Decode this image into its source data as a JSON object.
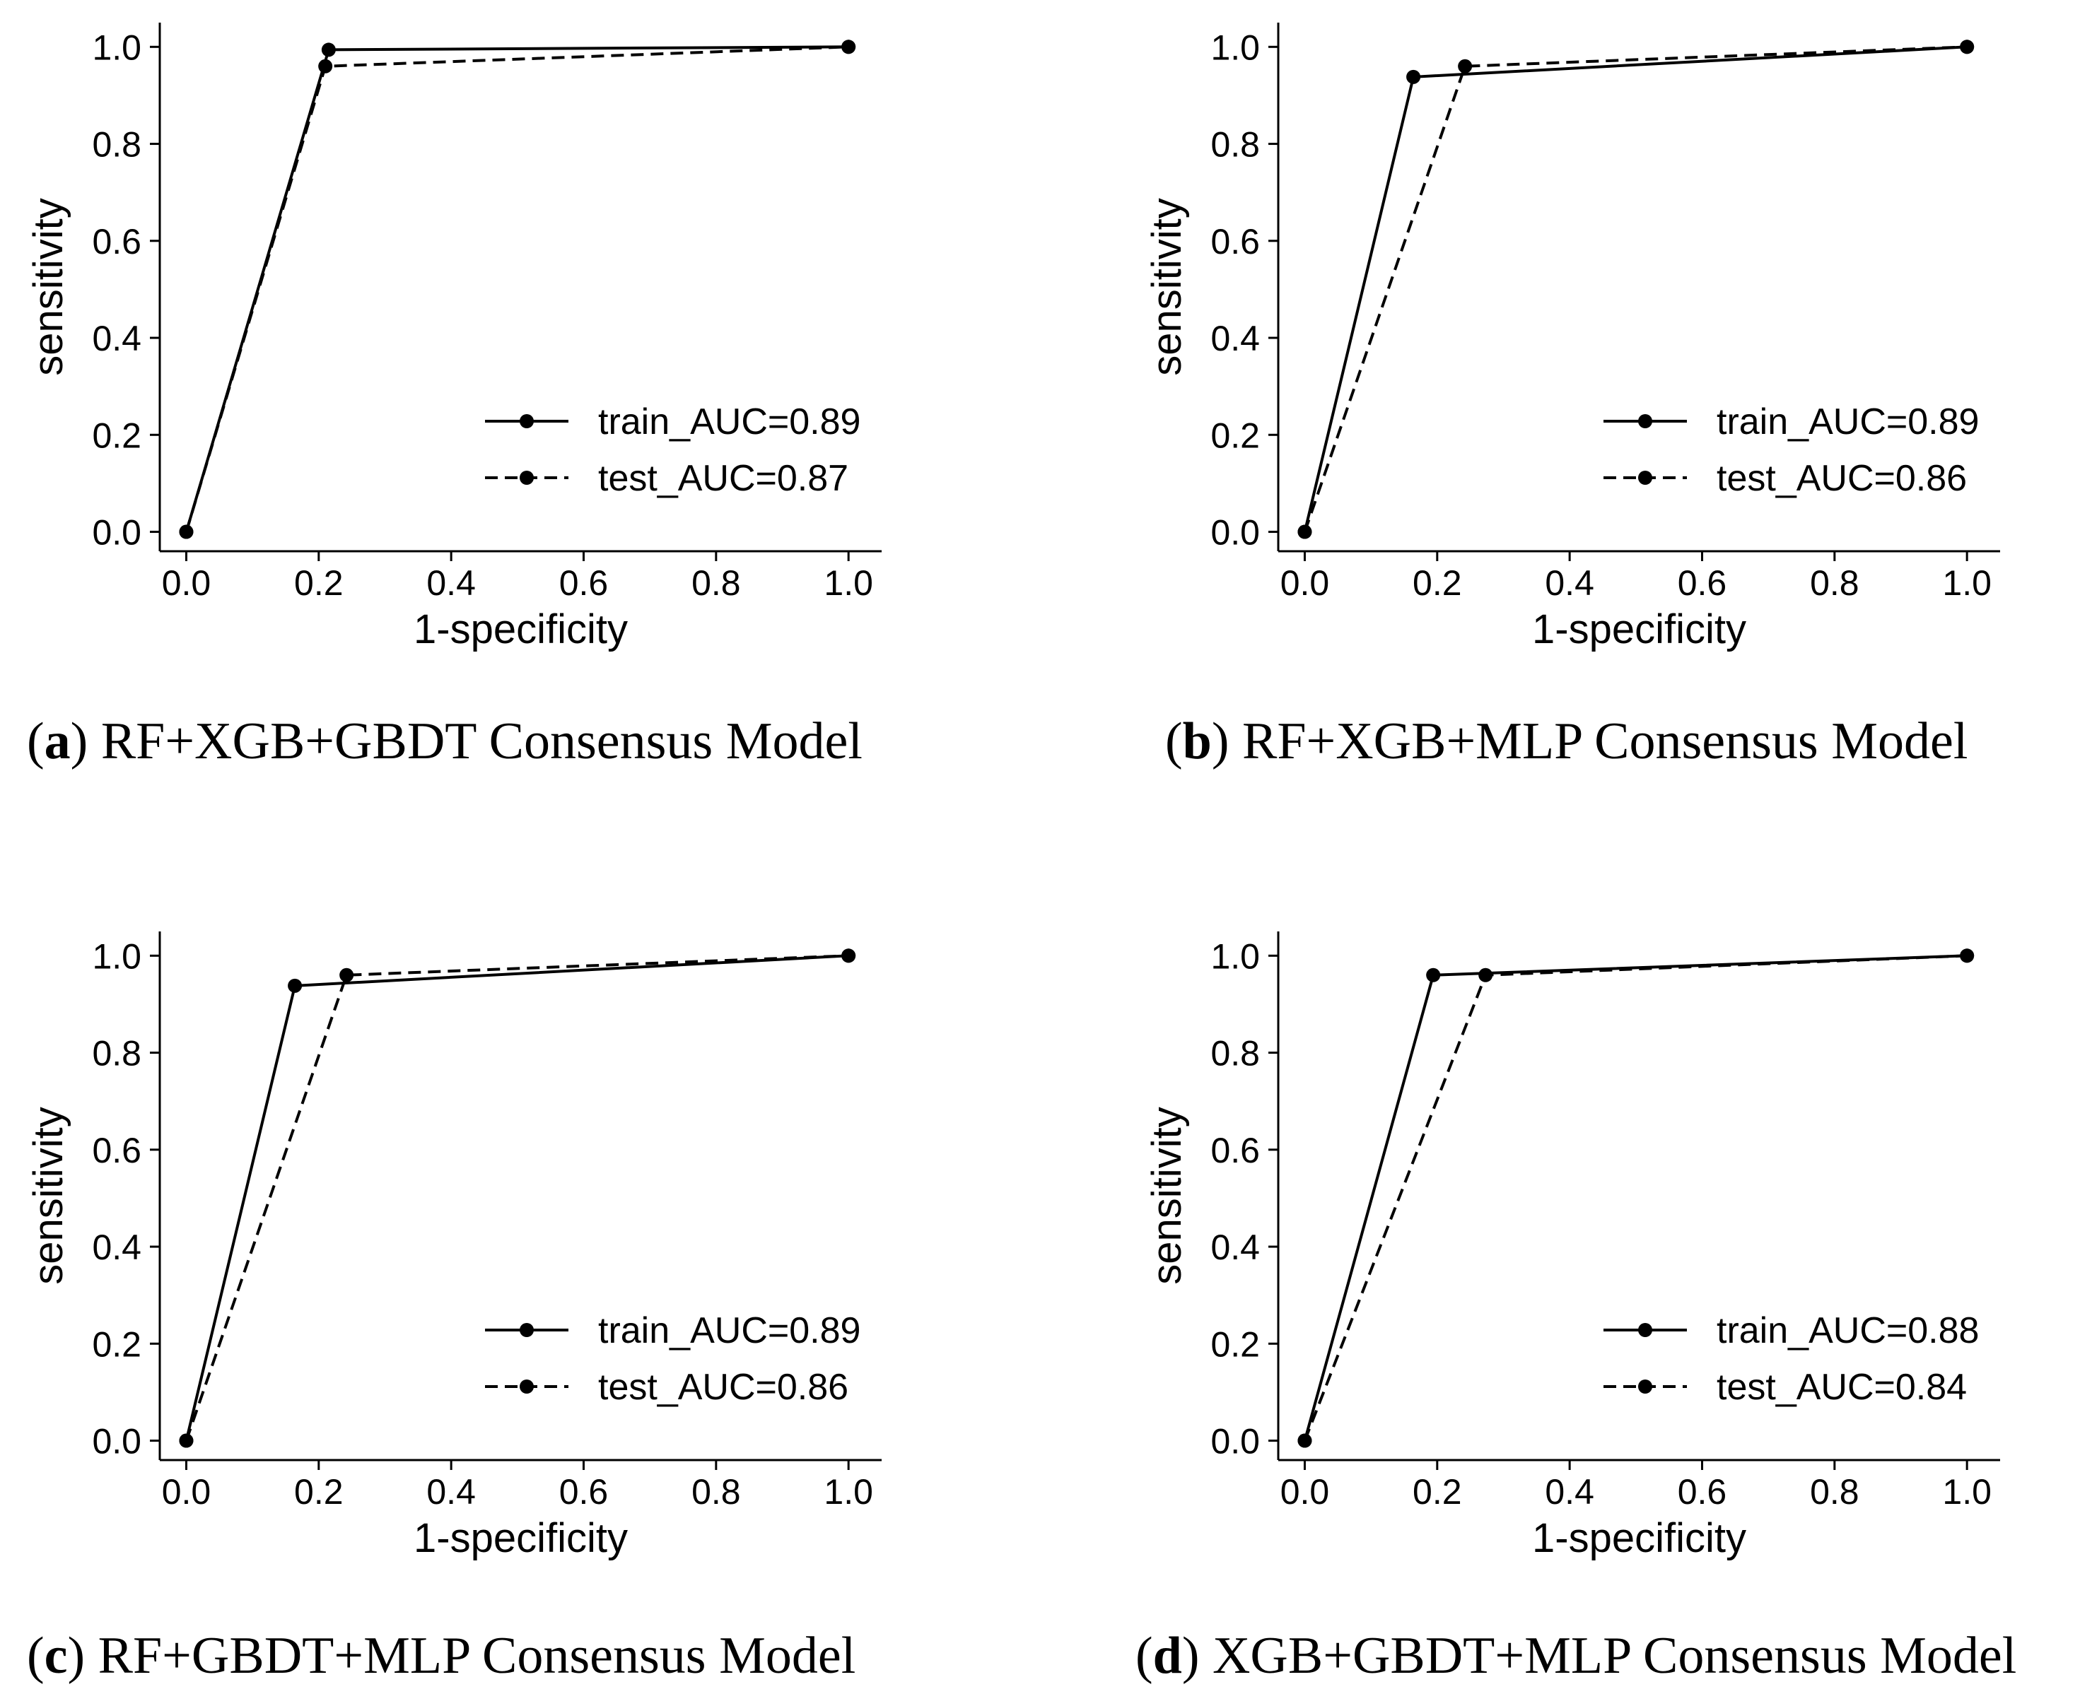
{
  "chart_data": [
    {
      "type": "line",
      "caption_letter": "a",
      "caption_text": "RF+XGB+GBDT Consensus Model",
      "xlabel": "1-specificity",
      "ylabel": "sensitivity",
      "xlim": [
        -0.04,
        1.05
      ],
      "ylim": [
        -0.04,
        1.05
      ],
      "xticks": [
        "0.0",
        "0.2",
        "0.4",
        "0.6",
        "0.8",
        "1.0"
      ],
      "yticks": [
        "0.0",
        "0.2",
        "0.4",
        "0.6",
        "0.8",
        "1.0"
      ],
      "grid": false,
      "legend_position": "lower-right",
      "series": [
        {
          "name": "train_AUC=0.89",
          "style": "solid",
          "x": [
            0.0,
            0.215,
            1.0
          ],
          "y": [
            0.0,
            0.994,
            1.0
          ]
        },
        {
          "name": "test_AUC=0.87",
          "style": "dashed",
          "x": [
            0.0,
            0.21,
            1.0
          ],
          "y": [
            0.0,
            0.96,
            1.0
          ]
        }
      ]
    },
    {
      "type": "line",
      "caption_letter": "b",
      "caption_text": "RF+XGB+MLP Consensus Model",
      "xlabel": "1-specificity",
      "ylabel": "sensitivity",
      "xlim": [
        -0.04,
        1.05
      ],
      "ylim": [
        -0.04,
        1.05
      ],
      "xticks": [
        "0.0",
        "0.2",
        "0.4",
        "0.6",
        "0.8",
        "1.0"
      ],
      "yticks": [
        "0.0",
        "0.2",
        "0.4",
        "0.6",
        "0.8",
        "1.0"
      ],
      "grid": false,
      "legend_position": "lower-right",
      "series": [
        {
          "name": "train_AUC=0.89",
          "style": "solid",
          "x": [
            0.0,
            0.164,
            1.0
          ],
          "y": [
            0.0,
            0.938,
            1.0
          ]
        },
        {
          "name": "test_AUC=0.86",
          "style": "dashed",
          "x": [
            0.0,
            0.242,
            1.0
          ],
          "y": [
            0.0,
            0.96,
            1.0
          ]
        }
      ]
    },
    {
      "type": "line",
      "caption_letter": "c",
      "caption_text": "RF+GBDT+MLP Consensus Model",
      "xlabel": "1-specificity",
      "ylabel": "sensitivity",
      "xlim": [
        -0.04,
        1.05
      ],
      "ylim": [
        -0.04,
        1.05
      ],
      "xticks": [
        "0.0",
        "0.2",
        "0.4",
        "0.6",
        "0.8",
        "1.0"
      ],
      "yticks": [
        "0.0",
        "0.2",
        "0.4",
        "0.6",
        "0.8",
        "1.0"
      ],
      "grid": false,
      "legend_position": "lower-right",
      "series": [
        {
          "name": "train_AUC=0.89",
          "style": "solid",
          "x": [
            0.0,
            0.164,
            1.0
          ],
          "y": [
            0.0,
            0.938,
            1.0
          ]
        },
        {
          "name": "test_AUC=0.86",
          "style": "dashed",
          "x": [
            0.0,
            0.242,
            1.0
          ],
          "y": [
            0.0,
            0.96,
            1.0
          ]
        }
      ]
    },
    {
      "type": "line",
      "caption_letter": "d",
      "caption_text": "XGB+GBDT+MLP Consensus Model",
      "xlabel": "1-specificity",
      "ylabel": "sensitivity",
      "xlim": [
        -0.04,
        1.05
      ],
      "ylim": [
        -0.04,
        1.05
      ],
      "xticks": [
        "0.0",
        "0.2",
        "0.4",
        "0.6",
        "0.8",
        "1.0"
      ],
      "yticks": [
        "0.0",
        "0.2",
        "0.4",
        "0.6",
        "0.8",
        "1.0"
      ],
      "grid": false,
      "legend_position": "lower-right",
      "series": [
        {
          "name": "train_AUC=0.88",
          "style": "solid",
          "x": [
            0.0,
            0.194,
            1.0
          ],
          "y": [
            0.0,
            0.96,
            1.0
          ]
        },
        {
          "name": "test_AUC=0.84",
          "style": "dashed",
          "x": [
            0.0,
            0.273,
            1.0
          ],
          "y": [
            0.0,
            0.96,
            1.0
          ]
        }
      ]
    }
  ]
}
